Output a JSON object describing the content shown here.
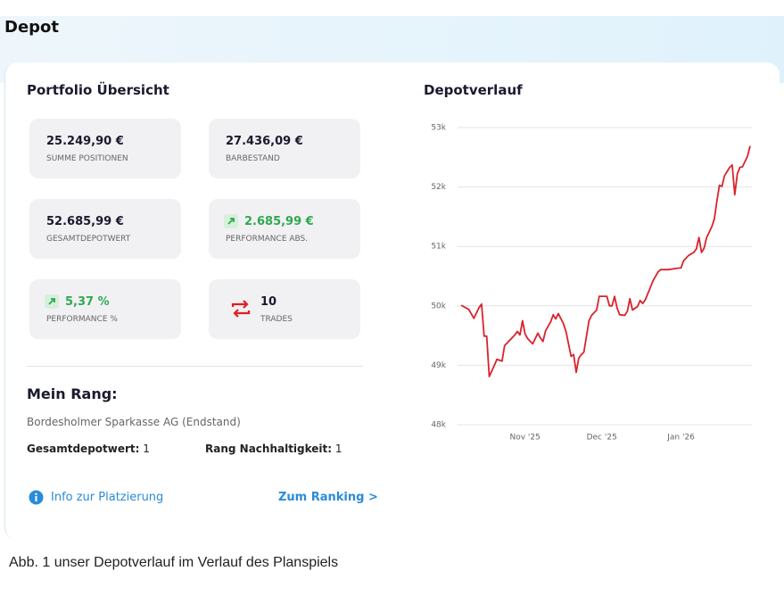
{
  "header": {
    "title": "Depot"
  },
  "portfolio": {
    "title": "Portfolio Übersicht",
    "tiles": [
      {
        "value": "25.249,90 €",
        "label": "SUMME POSITIONEN"
      },
      {
        "value": "27.436,09 €",
        "label": "BARBESTAND"
      },
      {
        "value": "52.685,99 €",
        "label": "GESAMTDEPOTWERT"
      },
      {
        "value": "2.685,99 €",
        "label": "PERFORMANCE ABS."
      },
      {
        "value": "5,37 %",
        "label": "PERFORMANCE %"
      },
      {
        "value": "10",
        "label": "TRADES"
      }
    ]
  },
  "rank": {
    "title": "Mein Rang:",
    "bank": "Bordesholmer Sparkasse AG (Endstand)",
    "items": [
      {
        "label": "Gesamtdepotwert:",
        "value": "1"
      },
      {
        "label": "Rang Nachhaltigkeit:",
        "value": "1"
      }
    ]
  },
  "links": {
    "info": "Info zur Platzierung",
    "ranking": "Zum Ranking >"
  },
  "chart_data": {
    "type": "line",
    "title": "Depotverlauf",
    "color": "#d9232d",
    "grid": true,
    "x": [
      0,
      3,
      5,
      7,
      8,
      9,
      10,
      11,
      13,
      14,
      16,
      17,
      19,
      21,
      22,
      23,
      24,
      25,
      26,
      28,
      30,
      31,
      32,
      33,
      35,
      36,
      37,
      38,
      40,
      41,
      43,
      44,
      45,
      46,
      47,
      48,
      50,
      51,
      53,
      54,
      57,
      58,
      59,
      60,
      61,
      62,
      64,
      65,
      66,
      67,
      69,
      70,
      71,
      72,
      74,
      75,
      77,
      78,
      81,
      84,
      86,
      87,
      89,
      91,
      92,
      93,
      94,
      95,
      96,
      98,
      99,
      100,
      101,
      102,
      103,
      105,
      106,
      107,
      108,
      109,
      110,
      112,
      113
    ],
    "values": [
      50010,
      49940,
      49790,
      49970,
      50030,
      49490,
      49490,
      48810,
      49000,
      49100,
      49070,
      49330,
      49420,
      49510,
      49570,
      49510,
      49750,
      49530,
      49450,
      49360,
      49540,
      49460,
      49400,
      49580,
      49730,
      49850,
      49780,
      49870,
      49700,
      49570,
      49150,
      49180,
      48880,
      49120,
      49180,
      49220,
      49750,
      49840,
      49930,
      50160,
      50160,
      50000,
      50000,
      50160,
      49960,
      49850,
      49840,
      49910,
      50120,
      49930,
      49990,
      50090,
      50040,
      50100,
      50310,
      50420,
      50570,
      50610,
      50610,
      50630,
      50640,
      50760,
      50850,
      50900,
      50960,
      51150,
      50900,
      50970,
      51150,
      51330,
      51460,
      51760,
      52030,
      52010,
      52190,
      52330,
      52370,
      51870,
      52220,
      52330,
      52340,
      52520,
      52690
    ],
    "xlim": [
      0,
      113
    ],
    "xticks": [
      {
        "value": 25,
        "label": "Nov '25"
      },
      {
        "value": 55,
        "label": "Dec '25"
      },
      {
        "value": 86,
        "label": "Jan '26"
      }
    ],
    "ylim": [
      48000,
      53000
    ],
    "yticks": [
      {
        "value": 48000,
        "label": "48k"
      },
      {
        "value": 49000,
        "label": "49k"
      },
      {
        "value": 50000,
        "label": "50k"
      },
      {
        "value": 51000,
        "label": "51k"
      },
      {
        "value": 52000,
        "label": "52k"
      },
      {
        "value": 53000,
        "label": "53k"
      }
    ]
  },
  "caption": "Abb. 1 unser Depotverlauf im Verlauf des Planspiels"
}
